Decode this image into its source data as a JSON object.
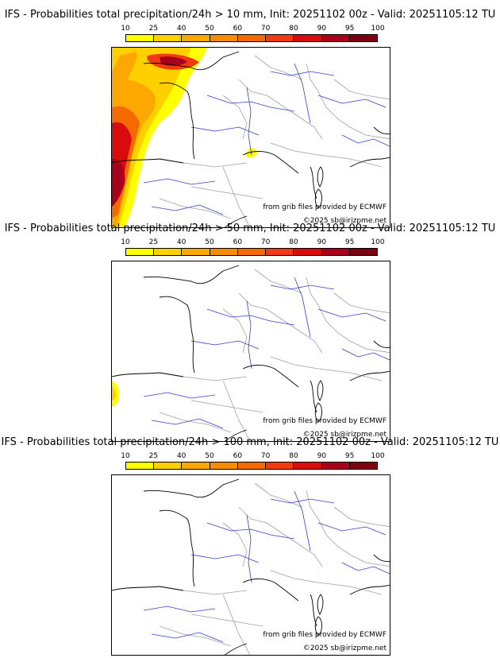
{
  "legend_scale": {
    "ticks": [
      "10",
      "25",
      "40",
      "50",
      "60",
      "70",
      "80",
      "90",
      "95",
      "100"
    ],
    "colors": [
      "#ffff00",
      "#ffd000",
      "#fca800",
      "#f88c00",
      "#f46a00",
      "#f23a10",
      "#d80c0c",
      "#a8001c",
      "#7c0012"
    ]
  },
  "colors": {
    "coastline": "#000000",
    "rivers": "#3040d0",
    "borders": "#a0a0a0"
  },
  "panels": [
    {
      "title": "IFS - Probabilities total precipitation/24h > 10 mm, Init: 20251102 00z - Valid: 20251105:12 TU",
      "threshold_mm": 10,
      "source_credit": "from grib files provided by ECMWF",
      "copyright": "©2025 sb@irizpme.net"
    },
    {
      "title": "IFS - Probabilities total precipitation/24h > 50 mm, Init: 20251102 00z - Valid: 20251105:12 TU",
      "threshold_mm": 50,
      "source_credit": "from grib files provided by ECMWF",
      "copyright": "©2025 sb@irizpme.net"
    },
    {
      "title": "IFS - Probabilities total precipitation/24h > 100 mm, Init: 20251102 00z - Valid: 20251105:12 TU",
      "threshold_mm": 100,
      "source_credit": "from grib files provided by ECMWF",
      "copyright": "©2025 sb@irizpme.net"
    }
  ]
}
